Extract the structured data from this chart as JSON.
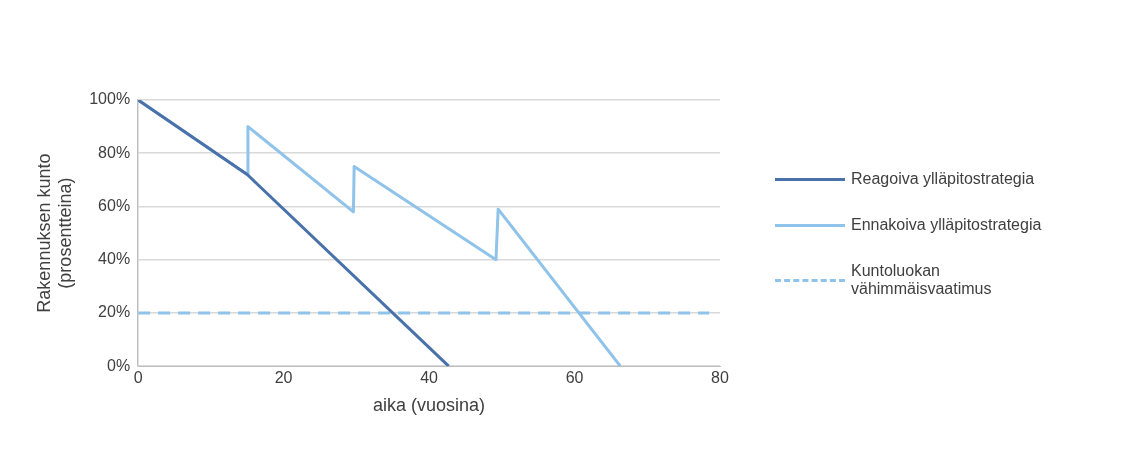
{
  "chart_data": {
    "type": "line",
    "xlabel": "aika (vuosina)",
    "ylabel": "Rakennuksen kunto (prosentteina)",
    "xlim": [
      0,
      80
    ],
    "xticks": [
      0,
      20,
      40,
      60,
      80
    ],
    "ylim": [
      0,
      100
    ],
    "yticks": [
      {
        "value": 0,
        "label": "0%"
      },
      {
        "value": 20,
        "label": "20%"
      },
      {
        "value": 40,
        "label": "40%"
      },
      {
        "value": 60,
        "label": "60%"
      },
      {
        "value": 80,
        "label": "80%"
      },
      {
        "value": 100,
        "label": "100%"
      }
    ],
    "grid": "y",
    "legend": "right",
    "marker": "none",
    "series": [
      {
        "name": "Reagoiva ylläpitostrategia",
        "color": "#4a72aa",
        "x": [
          0,
          15,
          42.7
        ],
        "values": [
          100,
          72,
          0
        ],
        "line_style": "solid"
      },
      {
        "name": "Ennakoiva ylläpitostrategia",
        "color": "#8fc3ea",
        "x": [
          0,
          15,
          15.1,
          29.6,
          29.7,
          49.2,
          49.5,
          66.3
        ],
        "values": [
          100,
          72,
          90,
          58,
          75,
          40,
          59,
          0
        ],
        "line_style": "solid"
      },
      {
        "name": "Kuntoluokan vähimmäisvaatimus",
        "color": "#8fc3ea",
        "x": [
          0,
          78.5
        ],
        "values": [
          20,
          20
        ],
        "line_style": "dashed"
      }
    ]
  }
}
